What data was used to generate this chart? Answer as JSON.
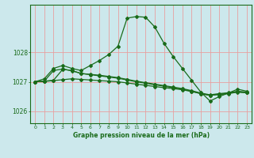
{
  "title": "",
  "xlabel": "Graphe pression niveau de la mer (hPa)",
  "background_color": "#cce8ec",
  "grid_color": "#e8a0a0",
  "line_color": "#1a6b1a",
  "xlim": [
    -0.5,
    23.5
  ],
  "ylim": [
    1025.6,
    1029.6
  ],
  "yticks": [
    1026,
    1027,
    1028
  ],
  "xticks": [
    0,
    1,
    2,
    3,
    4,
    5,
    6,
    7,
    8,
    9,
    10,
    11,
    12,
    13,
    14,
    15,
    16,
    17,
    18,
    19,
    20,
    21,
    22,
    23
  ],
  "curves": [
    {
      "x": [
        0,
        1,
        2,
        3,
        4,
        5,
        6,
        7,
        8,
        9,
        10,
        11,
        12,
        13,
        14,
        15,
        16,
        17,
        18,
        19,
        20,
        21,
        22,
        23
      ],
      "y": [
        1027.0,
        1027.1,
        1027.45,
        1027.55,
        1027.45,
        1027.38,
        1027.55,
        1027.72,
        1027.92,
        1028.2,
        1029.15,
        1029.2,
        1029.18,
        1028.85,
        1028.3,
        1027.85,
        1027.45,
        1027.05,
        1026.65,
        1026.35,
        1026.5,
        1026.62,
        1026.75,
        1026.68
      ]
    },
    {
      "x": [
        0,
        1,
        2,
        3,
        4,
        5,
        6,
        7,
        8,
        9,
        10,
        11,
        12,
        13,
        14,
        15,
        16,
        17,
        18,
        19,
        20,
        21,
        22,
        23
      ],
      "y": [
        1027.0,
        1027.02,
        1027.05,
        1027.42,
        1027.38,
        1027.28,
        1027.25,
        1027.22,
        1027.18,
        1027.14,
        1027.08,
        1027.02,
        1026.97,
        1026.92,
        1026.87,
        1026.82,
        1026.77,
        1026.7,
        1026.62,
        1026.56,
        1026.6,
        1026.63,
        1026.68,
        1026.65
      ]
    },
    {
      "x": [
        0,
        1,
        2,
        3,
        4,
        5,
        6,
        7,
        8,
        9,
        10,
        11,
        12,
        13,
        14,
        15,
        16,
        17,
        18,
        19,
        20,
        21,
        22,
        23
      ],
      "y": [
        1027.0,
        1027.02,
        1027.38,
        1027.43,
        1027.37,
        1027.28,
        1027.24,
        1027.2,
        1027.16,
        1027.12,
        1027.06,
        1027.0,
        1026.95,
        1026.9,
        1026.85,
        1026.8,
        1026.75,
        1026.68,
        1026.6,
        1026.54,
        1026.58,
        1026.61,
        1026.66,
        1026.63
      ]
    },
    {
      "x": [
        0,
        1,
        2,
        3,
        4,
        5,
        6,
        7,
        8,
        9,
        10,
        11,
        12,
        13,
        14,
        15,
        16,
        17,
        18,
        19,
        20,
        21,
        22,
        23
      ],
      "y": [
        1027.0,
        1027.01,
        1027.04,
        1027.07,
        1027.1,
        1027.08,
        1027.06,
        1027.04,
        1027.02,
        1027.0,
        1026.96,
        1026.92,
        1026.88,
        1026.84,
        1026.8,
        1026.77,
        1026.73,
        1026.67,
        1026.6,
        1026.54,
        1026.57,
        1026.6,
        1026.65,
        1026.63
      ]
    }
  ]
}
